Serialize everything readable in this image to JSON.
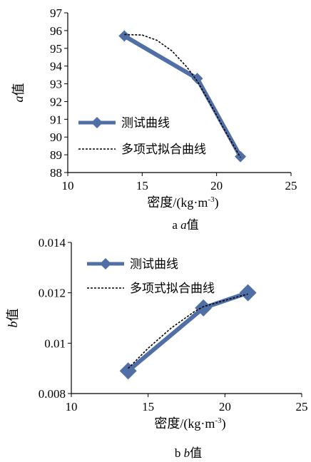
{
  "chart_data": [
    {
      "type": "line",
      "caption": {
        "letter": "a",
        "title": "a值"
      },
      "xlabel": "密度/(kg·m-3)",
      "ylabel": "a值",
      "xlim": [
        10,
        25
      ],
      "ylim": [
        88,
        97
      ],
      "xticks": [
        10,
        15,
        20,
        25
      ],
      "yticks": [
        88,
        89,
        90,
        91,
        92,
        93,
        94,
        95,
        96,
        97
      ],
      "legend_position": "center-left",
      "series": [
        {
          "name": "测试曲线",
          "style": "thick-line-diamond",
          "color": "#4f6fa6",
          "x": [
            13.8,
            18.7,
            21.6
          ],
          "y": [
            95.7,
            93.3,
            88.9
          ]
        },
        {
          "name": "多项式拟合曲线",
          "style": "dashed",
          "color": "#000000",
          "x": [
            13.8,
            15.0,
            16.0,
            17.0,
            18.0,
            18.7,
            19.5,
            20.5,
            21.6
          ],
          "y": [
            95.78,
            95.75,
            95.45,
            94.85,
            93.95,
            93.15,
            92.0,
            90.45,
            88.85
          ]
        }
      ]
    },
    {
      "type": "line",
      "caption": {
        "letter": "b",
        "title": "b值"
      },
      "xlabel": "密度/(kg·m-3)",
      "ylabel": "b值",
      "xlim": [
        10,
        25
      ],
      "ylim": [
        0.008,
        0.014
      ],
      "xticks": [
        10,
        15,
        20,
        25
      ],
      "yticks": [
        0.008,
        0.01,
        0.012,
        0.014
      ],
      "ytick_labels": [
        "0.008",
        "0.01",
        "0.012",
        "0.014"
      ],
      "legend_position": "top-left",
      "series": [
        {
          "name": "测试曲线",
          "style": "thick-line-diamond",
          "color": "#4f6fa6",
          "x": [
            13.7,
            18.6,
            21.5
          ],
          "y": [
            0.0089,
            0.0114,
            0.012
          ]
        },
        {
          "name": "多项式拟合曲线",
          "style": "dashed",
          "color": "#000000",
          "x": [
            13.7,
            15.0,
            16.5,
            18.0,
            18.6,
            20.0,
            21.5
          ],
          "y": [
            0.009,
            0.0098,
            0.0106,
            0.01125,
            0.01145,
            0.0117,
            0.01195
          ]
        }
      ]
    }
  ]
}
